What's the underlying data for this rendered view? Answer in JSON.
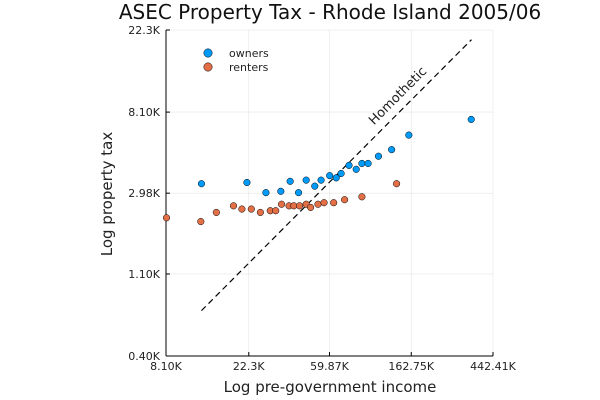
{
  "chart_data": {
    "type": "scatter",
    "title": "ASEC Property Tax - Rhode Island 2005/06",
    "xlabel": "Log pre-government income",
    "ylabel": "Log property tax",
    "x_scale": "log",
    "y_scale": "log",
    "xlim": [
      8100,
      442410
    ],
    "ylim": [
      400,
      22300
    ],
    "x_ticks": [
      8100,
      22300,
      59870,
      162750,
      442410
    ],
    "x_tick_labels": [
      "8.10K",
      "22.3K",
      "59.87K",
      "162.75K",
      "442.41K"
    ],
    "y_ticks": [
      400,
      1100,
      2980,
      8100,
      22300
    ],
    "y_tick_labels": [
      "0.40K",
      "1.10K",
      "2.98K",
      "8.10K",
      "22.3K"
    ],
    "grid": true,
    "legend_position": "top-left",
    "colors": {
      "owners": "#009af9",
      "renters": "#e26f46",
      "reference": "#000000"
    },
    "series": [
      {
        "name": "owners",
        "x": [
          12500,
          21800,
          27500,
          33000,
          37000,
          41000,
          45000,
          50000,
          54000,
          60000,
          65000,
          69000,
          76000,
          83000,
          89000,
          96000,
          109000,
          128000,
          158000,
          339000
        ],
        "y": [
          3350,
          3400,
          3000,
          3050,
          3450,
          3000,
          3500,
          3250,
          3500,
          3700,
          3600,
          3800,
          4200,
          4000,
          4300,
          4300,
          4700,
          5100,
          6100,
          7400
        ]
      },
      {
        "name": "renters",
        "x": [
          8150,
          12400,
          15000,
          18500,
          20500,
          23000,
          25700,
          29000,
          31000,
          33300,
          36500,
          38700,
          41500,
          45000,
          47500,
          52000,
          56000,
          63000,
          72000,
          89000,
          136000
        ],
        "y": [
          2200,
          2100,
          2350,
          2550,
          2450,
          2450,
          2350,
          2400,
          2400,
          2600,
          2550,
          2550,
          2550,
          2600,
          2500,
          2600,
          2650,
          2650,
          2750,
          2850,
          3350
        ]
      }
    ],
    "reference_line": {
      "label": "Homothetic",
      "x": [
        12500,
        340000
      ],
      "y": [
        700,
        19800
      ]
    }
  }
}
